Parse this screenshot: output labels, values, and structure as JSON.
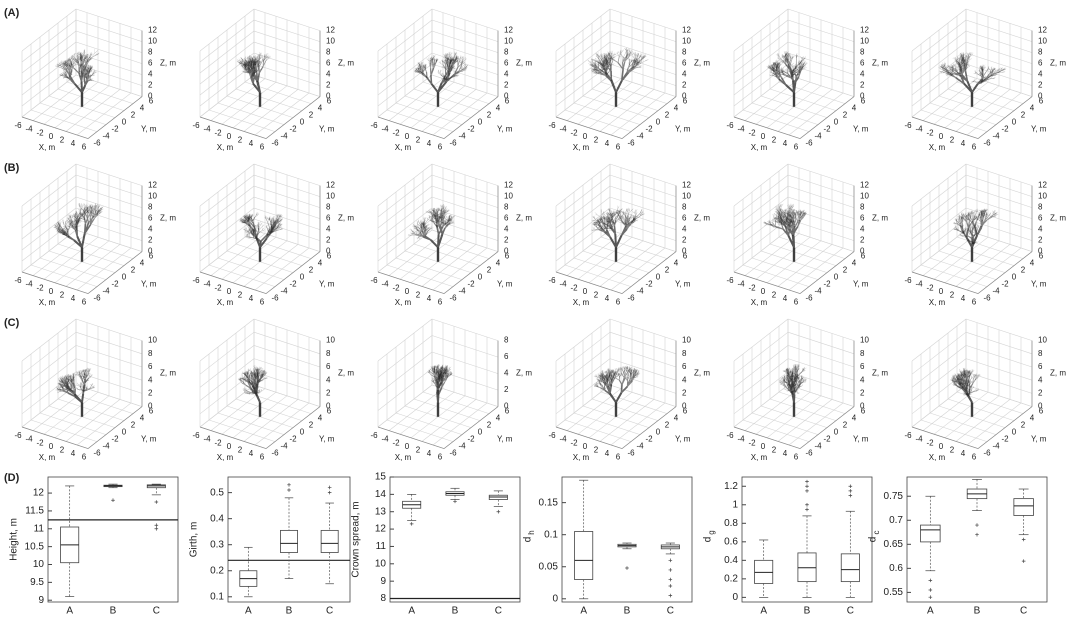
{
  "trees": {
    "xlabel": "X, m",
    "ylabel": "Y, m",
    "zlabel": "Z, m",
    "xticks": [
      -6,
      -4,
      -2,
      0,
      2,
      4,
      6
    ],
    "yticks": [
      -6,
      -4,
      -2,
      0,
      2,
      4,
      6
    ],
    "rows": [
      {
        "label": "(A)",
        "zticks": [
          [
            0,
            2,
            4,
            6,
            8,
            10,
            12
          ],
          [
            0,
            2,
            4,
            6,
            8,
            10,
            12
          ],
          [
            0,
            2,
            4,
            6,
            8,
            10,
            12
          ],
          [
            0,
            2,
            4,
            6,
            8,
            10,
            12
          ],
          [
            0,
            2,
            4,
            6,
            8,
            10,
            12
          ],
          [
            0,
            2,
            4,
            6,
            8,
            10,
            12
          ]
        ]
      },
      {
        "label": "(B)",
        "zticks": [
          [
            0,
            2,
            4,
            6,
            8,
            10,
            12
          ],
          [
            0,
            2,
            4,
            6,
            8,
            10,
            12
          ],
          [
            0,
            2,
            4,
            6,
            8,
            10,
            12
          ],
          [
            0,
            2,
            4,
            6,
            8,
            10,
            12
          ],
          [
            0,
            2,
            4,
            6,
            8,
            10,
            12
          ],
          [
            0,
            2,
            4,
            6,
            8,
            10,
            12
          ]
        ]
      },
      {
        "label": "(C)",
        "zticks": [
          [
            0,
            2,
            4,
            6,
            8,
            10
          ],
          [
            0,
            2,
            4,
            6,
            8,
            10
          ],
          [
            0,
            2,
            4,
            6,
            8
          ],
          [
            0,
            2,
            4,
            6,
            8,
            10
          ],
          [
            0,
            2,
            4,
            6,
            8,
            10
          ],
          [
            0,
            2,
            4,
            6,
            8,
            10
          ]
        ]
      }
    ]
  },
  "panel_label": "(D)",
  "chart_data": [
    {
      "type": "box",
      "ylabel": "Height, m",
      "categories": [
        "A",
        "B",
        "C"
      ],
      "ylim": [
        8.95,
        12.45
      ],
      "yticks": [
        9,
        9.5,
        10,
        10.5,
        11,
        11.5,
        12
      ],
      "hline": 11.25,
      "boxes": [
        {
          "min": 9.1,
          "q1": 10.05,
          "median": 10.55,
          "q3": 11.05,
          "max": 12.2,
          "outliers": []
        },
        {
          "min": 12.15,
          "q1": 12.18,
          "median": 12.2,
          "q3": 12.22,
          "max": 12.25,
          "outliers": [
            11.8
          ]
        },
        {
          "min": 11.95,
          "q1": 12.15,
          "median": 12.2,
          "q3": 12.23,
          "max": 12.25,
          "outliers": [
            11.75,
            11.1,
            11
          ]
        }
      ]
    },
    {
      "type": "box",
      "ylabel": "Girth, m",
      "categories": [
        "A",
        "B",
        "C"
      ],
      "ylim": [
        0.08,
        0.56
      ],
      "yticks": [
        0.1,
        0.2,
        0.3,
        0.4,
        0.5
      ],
      "hline": 0.24,
      "boxes": [
        {
          "min": 0.1,
          "q1": 0.14,
          "median": 0.17,
          "q3": 0.2,
          "max": 0.29,
          "outliers": []
        },
        {
          "min": 0.17,
          "q1": 0.27,
          "median": 0.305,
          "q3": 0.355,
          "max": 0.48,
          "outliers": [
            0.51,
            0.53
          ]
        },
        {
          "min": 0.15,
          "q1": 0.27,
          "median": 0.305,
          "q3": 0.355,
          "max": 0.46,
          "outliers": [
            0.5,
            0.52
          ]
        }
      ]
    },
    {
      "type": "box",
      "ylabel": "Crown spread, m",
      "categories": [
        "A",
        "B",
        "C"
      ],
      "ylim": [
        7.8,
        15
      ],
      "yticks": [
        8,
        9,
        10,
        11,
        12,
        13,
        14,
        15
      ],
      "hline": 8,
      "boxes": [
        {
          "min": 12.5,
          "q1": 13.2,
          "median": 13.4,
          "q3": 13.6,
          "max": 14,
          "outliers": [
            12.3
          ]
        },
        {
          "min": 13.7,
          "q1": 13.95,
          "median": 14.05,
          "q3": 14.15,
          "max": 14.35,
          "outliers": [
            13.6
          ]
        },
        {
          "min": 13.3,
          "q1": 13.7,
          "median": 13.85,
          "q3": 13.95,
          "max": 14.2,
          "outliers": [
            13
          ]
        }
      ]
    },
    {
      "type": "box",
      "ylabel": "d",
      "ylabel_sub": "h",
      "categories": [
        "A",
        "B",
        "C"
      ],
      "ylim": [
        -0.005,
        0.19
      ],
      "yticks": [
        0,
        0.05,
        0.1,
        0.15
      ],
      "boxes": [
        {
          "min": 0,
          "q1": 0.03,
          "median": 0.06,
          "q3": 0.105,
          "max": 0.185,
          "outliers": []
        },
        {
          "min": 0.078,
          "q1": 0.081,
          "median": 0.083,
          "q3": 0.085,
          "max": 0.087,
          "outliers": [
            0.048
          ]
        },
        {
          "min": 0.07,
          "q1": 0.078,
          "median": 0.081,
          "q3": 0.084,
          "max": 0.087,
          "outliers": [
            0.06,
            0.045,
            0.03,
            0.02,
            0.005
          ]
        }
      ]
    },
    {
      "type": "box",
      "ylabel": "d",
      "ylabel_sub": "g",
      "categories": [
        "A",
        "B",
        "C"
      ],
      "ylim": [
        -0.05,
        1.3
      ],
      "yticks": [
        0,
        0.2,
        0.4,
        0.6,
        0.8,
        1,
        1.2
      ],
      "boxes": [
        {
          "min": 0,
          "q1": 0.15,
          "median": 0.27,
          "q3": 0.4,
          "max": 0.62,
          "outliers": []
        },
        {
          "min": 0,
          "q1": 0.17,
          "median": 0.32,
          "q3": 0.48,
          "max": 0.88,
          "outliers": [
            0.95,
            1,
            1.15,
            1.2,
            1.25
          ]
        },
        {
          "min": 0,
          "q1": 0.17,
          "median": 0.3,
          "q3": 0.47,
          "max": 0.93,
          "outliers": [
            1.1,
            1.15,
            1.2
          ]
        }
      ]
    },
    {
      "type": "box",
      "ylabel": "d",
      "ylabel_sub": "c",
      "categories": [
        "A",
        "B",
        "C"
      ],
      "ylim": [
        0.53,
        0.79
      ],
      "yticks": [
        0.55,
        0.6,
        0.65,
        0.7,
        0.75
      ],
      "boxes": [
        {
          "min": 0.595,
          "q1": 0.655,
          "median": 0.68,
          "q3": 0.69,
          "max": 0.75,
          "outliers": [
            0.575,
            0.555,
            0.54
          ]
        },
        {
          "min": 0.72,
          "q1": 0.745,
          "median": 0.755,
          "q3": 0.765,
          "max": 0.785,
          "outliers": [
            0.67,
            0.69
          ]
        },
        {
          "min": 0.67,
          "q1": 0.71,
          "median": 0.73,
          "q3": 0.745,
          "max": 0.765,
          "outliers": [
            0.615,
            0.66
          ]
        }
      ]
    }
  ]
}
